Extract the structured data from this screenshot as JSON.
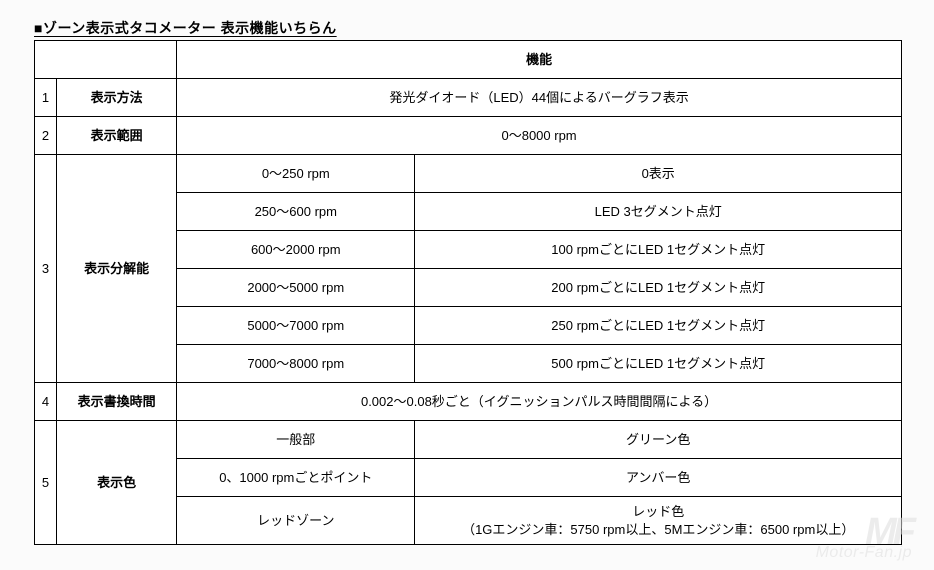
{
  "title": "■ゾーン表示式タコメーター 表示機能いちらん",
  "header": {
    "func": "機能"
  },
  "rows": [
    {
      "n": "1",
      "label": "表示方法",
      "full": "発光ダイオード（LED）44個によるバーグラフ表示"
    },
    {
      "n": "2",
      "label": "表示範囲",
      "full": "0～8000 rpm"
    },
    {
      "n": "3",
      "label": "表示分解能",
      "subs": [
        {
          "sub": "0～250 rpm",
          "val": "0表示"
        },
        {
          "sub": "250～600 rpm",
          "val": "LED 3セグメント点灯"
        },
        {
          "sub": "600～2000 rpm",
          "val": "100 rpmごとにLED 1セグメント点灯"
        },
        {
          "sub": "2000～5000 rpm",
          "val": "200 rpmごとにLED 1セグメント点灯"
        },
        {
          "sub": "5000～7000 rpm",
          "val": "250 rpmごとにLED 1セグメント点灯"
        },
        {
          "sub": "7000～8000 rpm",
          "val": "500 rpmごとにLED 1セグメント点灯"
        }
      ]
    },
    {
      "n": "4",
      "label": "表示書換時間",
      "full": "0.002～0.08秒ごと（イグニッションパルス時間間隔による）"
    },
    {
      "n": "5",
      "label": "表示色",
      "subs": [
        {
          "sub": "一般部",
          "val": "グリーン色"
        },
        {
          "sub": "0、1000 rpmごとポイント",
          "val": "アンバー色"
        },
        {
          "sub": "レッドゾーン",
          "val": "レッド色\n（1Gエンジン車：5750 rpm以上、5Mエンジン車：6500 rpm以上）"
        }
      ]
    }
  ],
  "watermark": {
    "logo": "MF",
    "text": "Motor-Fan.jp"
  }
}
